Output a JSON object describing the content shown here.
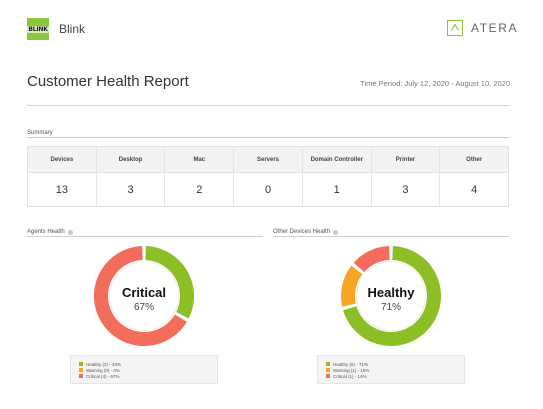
{
  "header": {
    "logo_text": "BLINK",
    "brand_name": "Blink",
    "vendor_name": "ATERA"
  },
  "report": {
    "title": "Customer Health Report",
    "time_period": "Time Period: July 12, 2020 - August 10, 2020"
  },
  "summary": {
    "label": "Summary",
    "columns": [
      {
        "header": "Devices",
        "value": "13"
      },
      {
        "header": "Desktop",
        "value": "3"
      },
      {
        "header": "Mac",
        "value": "2"
      },
      {
        "header": "Servers",
        "value": "0"
      },
      {
        "header": "Domain Controller",
        "value": "1"
      },
      {
        "header": "Printer",
        "value": "3"
      },
      {
        "header": "Other",
        "value": "4"
      }
    ]
  },
  "colors": {
    "healthy": "#8cbf26",
    "warning": "#f5a623",
    "critical": "#f26d5b",
    "accent": "#8cc63f"
  },
  "agents_health": {
    "label": "Agents Health",
    "status": "Critical",
    "percent": "67%",
    "segments": [
      {
        "key": "healthy",
        "count": 2,
        "share": 0.33
      },
      {
        "key": "warning",
        "count": 0,
        "share": 0
      },
      {
        "key": "critical",
        "count": 4,
        "share": 0.67
      }
    ],
    "legend": [
      "Healthy (2) - 33%",
      "Warning (0) - 0%",
      "Critical (4) - 67%"
    ]
  },
  "other_devices_health": {
    "label": "Other Devices Health",
    "status": "Healthy",
    "percent": "71%",
    "segments": [
      {
        "key": "healthy",
        "count": 5,
        "share": 0.71
      },
      {
        "key": "warning",
        "count": 1,
        "share": 0.15
      },
      {
        "key": "critical",
        "count": 1,
        "share": 0.14
      }
    ],
    "legend": [
      "Healthy (5) - 71%",
      "Warning (1) - 15%",
      "Critical (1) - 14%"
    ]
  }
}
